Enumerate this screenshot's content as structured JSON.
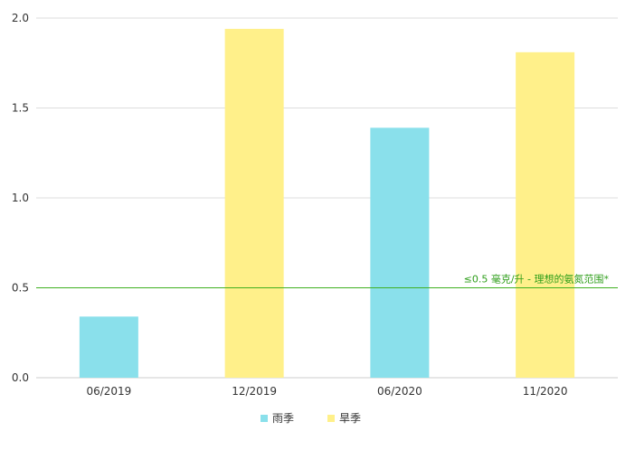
{
  "chart_data": {
    "type": "bar",
    "categories": [
      "06/2019",
      "12/2019",
      "06/2020",
      "11/2020"
    ],
    "values": [
      0.34,
      1.94,
      1.39,
      1.81
    ],
    "bar_series": [
      "雨季",
      "旱季",
      "雨季",
      "旱季"
    ],
    "series": [
      {
        "name": "雨季",
        "color": "#8ae0eb"
      },
      {
        "name": "旱季",
        "color": "#fff08a"
      }
    ],
    "ylim": [
      0,
      2.0
    ],
    "yticks": [
      "0.0",
      "0.5",
      "1.0",
      "1.5",
      "2.0"
    ],
    "grid": true,
    "legend_position": "bottom",
    "reference_line": {
      "value": 0.5,
      "label": "≤0.5 毫克/升 - 理想的氨氮范围*",
      "color": "#3fb020"
    },
    "xlabel": "",
    "ylabel": ""
  }
}
